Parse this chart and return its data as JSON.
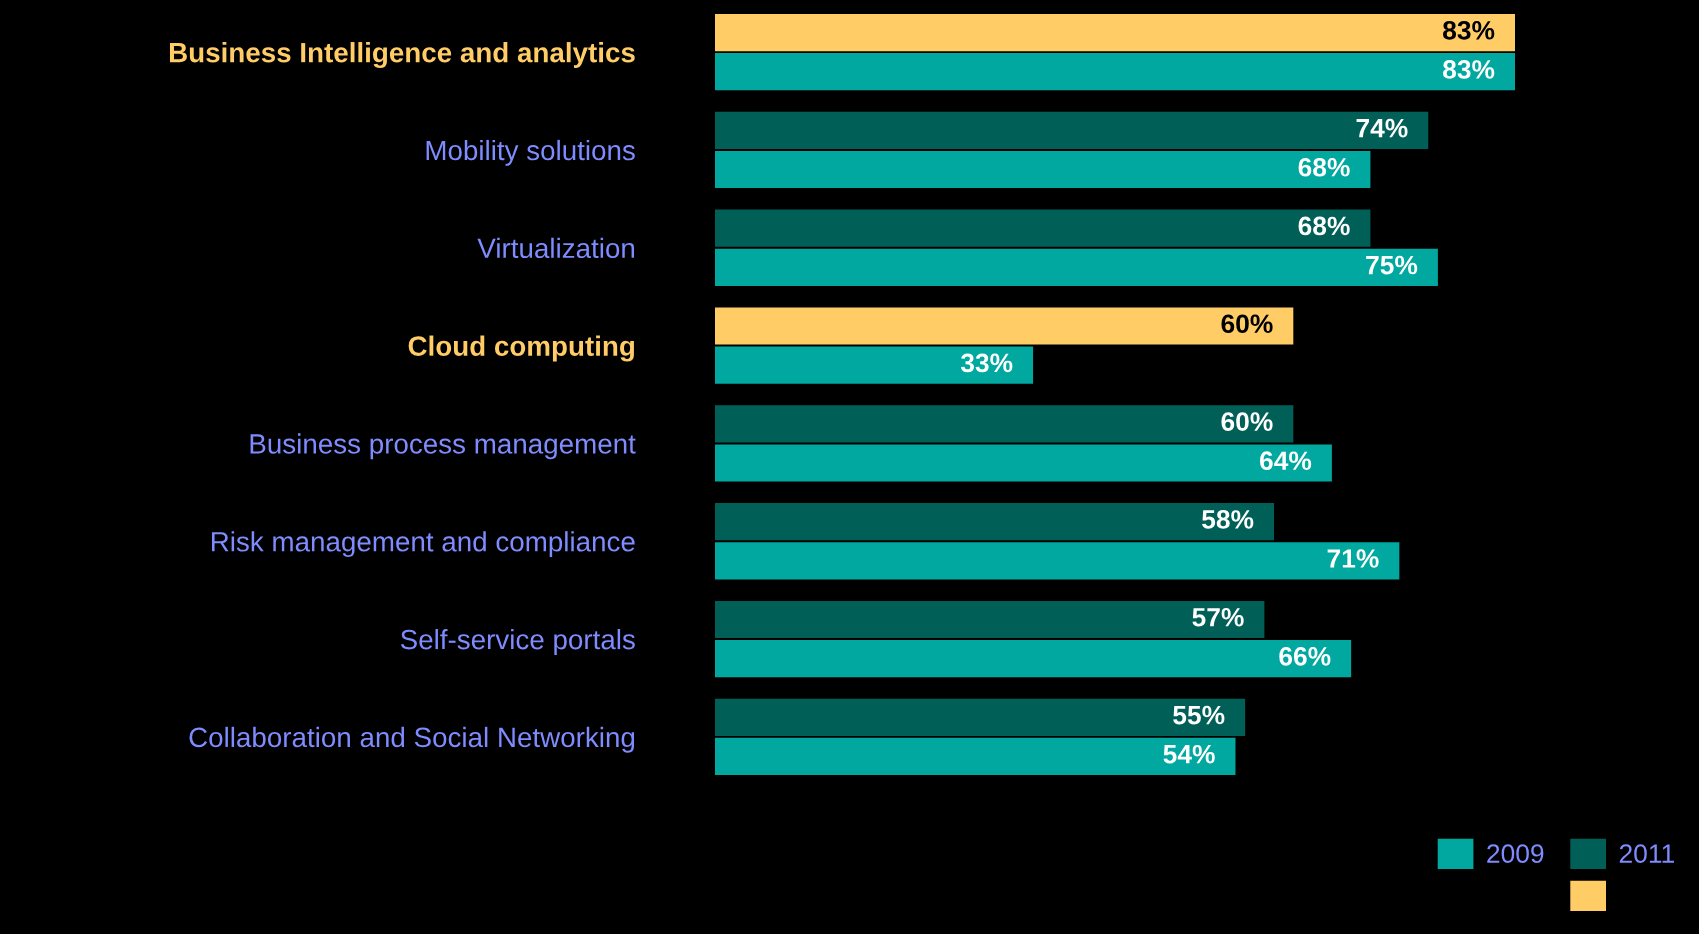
{
  "chart_data": {
    "type": "bar",
    "orientation": "horizontal",
    "legend": "bottom right",
    "categories": [
      "Business Intelligence and analytics",
      "Mobility solutions",
      "Virtualization",
      "Cloud computing",
      "Business process management",
      "Risk management and compliance",
      "Self-service portals",
      "Collaboration and Social Networking"
    ],
    "series": [
      {
        "name": "2009",
        "color": "#00a8a0",
        "values": [
          83,
          68,
          75,
          33,
          64,
          71,
          66,
          54
        ],
        "value_labels": [
          "83%",
          "68%",
          "75%",
          "33%",
          "64%",
          "71%",
          "66%",
          "54%"
        ]
      },
      {
        "name": "2011",
        "color": "#006058",
        "colors": [
          "#ffcc66",
          "#006058",
          "#006058",
          "#ffcc66",
          "#006058",
          "#006058",
          "#006058",
          "#006058"
        ],
        "values": [
          83,
          74,
          68,
          60,
          60,
          58,
          57,
          55
        ],
        "value_labels": [
          "83%",
          "74%",
          "68%",
          "60%",
          "60%",
          "58%",
          "57%",
          "55%"
        ]
      }
    ]
  }
}
